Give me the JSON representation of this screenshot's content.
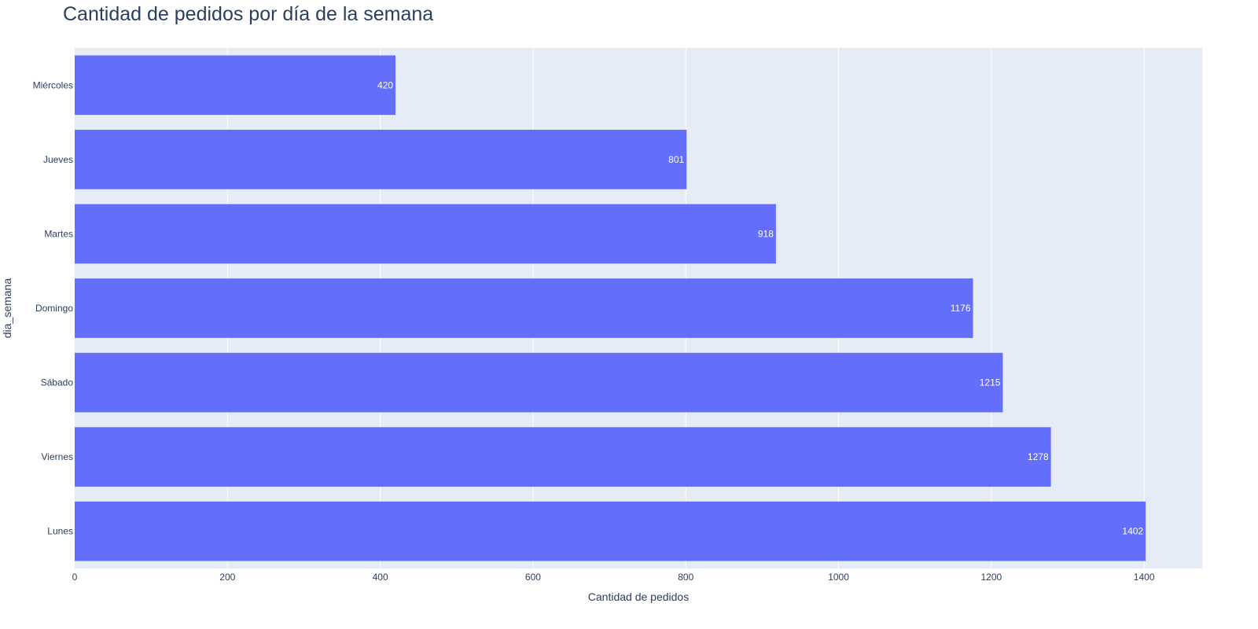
{
  "chart_data": {
    "type": "bar",
    "orientation": "horizontal",
    "title": "Cantidad de pedidos por día de la semana",
    "xlabel": "Cantidad de pedidos",
    "ylabel": "dia_semana",
    "categories": [
      "Miércoles",
      "Jueves",
      "Martes",
      "Domingo",
      "Sábado",
      "Viernes",
      "Lunes"
    ],
    "values": [
      420,
      801,
      918,
      1176,
      1215,
      1278,
      1402
    ],
    "data_labels": [
      "420",
      "801",
      "918",
      "1176",
      "1215",
      "1278",
      "1402"
    ],
    "xlim": [
      0,
      1476
    ],
    "xticks": [
      0,
      200,
      400,
      600,
      800,
      1000,
      1200,
      1400
    ],
    "grid": true,
    "bar_color": "#636efa",
    "plot_background": "#e5ecf6",
    "grid_color": "#ffffff",
    "text_color": "#2a3f5f"
  }
}
